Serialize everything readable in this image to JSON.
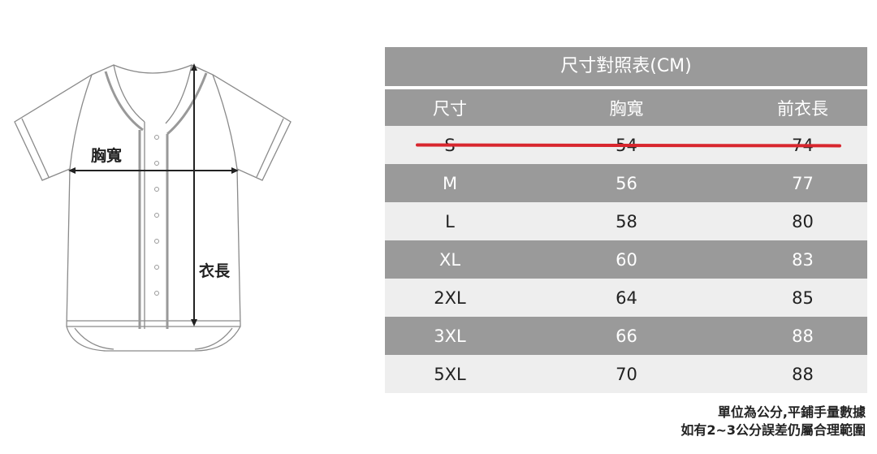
{
  "diagram": {
    "chest_label": "胸寬",
    "length_label": "衣長"
  },
  "table": {
    "title": "尺寸對照表(CM)",
    "headers": [
      "尺寸",
      "胸寬",
      "前衣長"
    ],
    "rows": [
      {
        "size": "S",
        "chest": "54",
        "length": "74",
        "struck_out": true
      },
      {
        "size": "M",
        "chest": "56",
        "length": "77"
      },
      {
        "size": "L",
        "chest": "58",
        "length": "80"
      },
      {
        "size": "XL",
        "chest": "60",
        "length": "83"
      },
      {
        "size": "2XL",
        "chest": "64",
        "length": "85"
      },
      {
        "size": "3XL",
        "chest": "66",
        "length": "88"
      },
      {
        "size": "5XL",
        "chest": "70",
        "length": "88"
      }
    ],
    "strike_color": "#d8262e"
  },
  "note": {
    "line1": "單位為公分,平鋪手量數據",
    "line2": "如有2~3公分誤差仍屬合理範圍"
  }
}
